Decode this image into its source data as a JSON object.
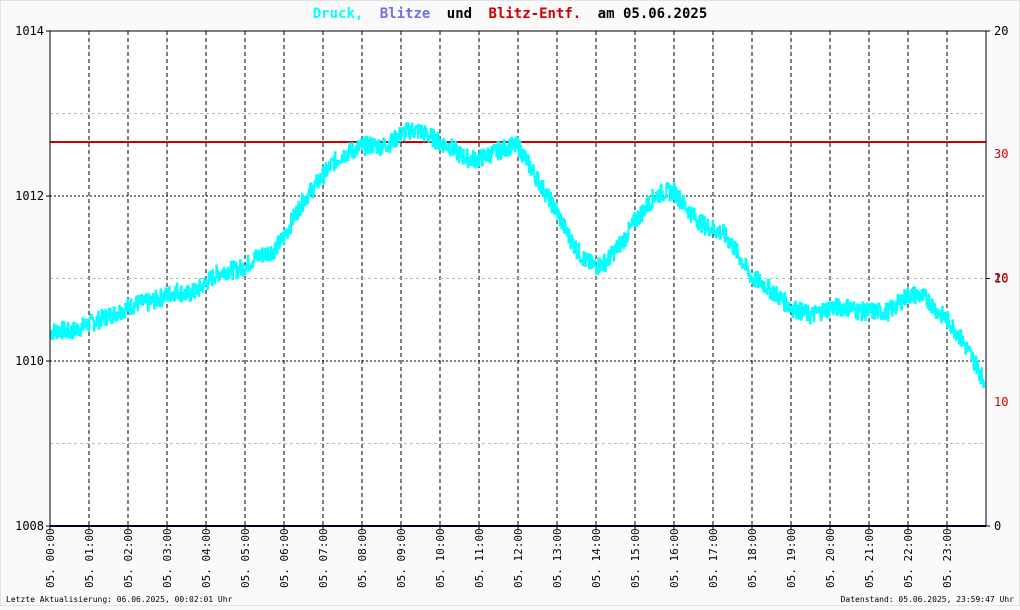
{
  "title": {
    "part1": "Druck,",
    "part2": "Blitze",
    "part3": "und",
    "part4": "Blitz-Entf.",
    "part5": "am 05.06.2025"
  },
  "footer": {
    "left": "Letzte Aktualisierung: 06.06.2025, 00:02:01 Uhr",
    "right": "Datenstand: 05.06.2025, 23:59:47 Uhr"
  },
  "colors": {
    "pressure": "#00ffff",
    "blitze": "#7070e0",
    "blitz_entf": "#cc0000",
    "title_black": "#000000",
    "right_axis_black": "#000000",
    "right_axis_red": "#cc0000",
    "lightning_count_line": "#000060"
  },
  "chart_data": {
    "type": "line",
    "x_tick_labels": [
      "05. 00:00",
      "05. 01:00",
      "05. 02:00",
      "05. 03:00",
      "05. 04:00",
      "05. 05:00",
      "05. 06:00",
      "05. 07:00",
      "05. 08:00",
      "05. 09:00",
      "05. 10:00",
      "05. 11:00",
      "05. 12:00",
      "05. 13:00",
      "05. 14:00",
      "05. 15:00",
      "05. 16:00",
      "05. 17:00",
      "05. 18:00",
      "05. 19:00",
      "05. 20:00",
      "05. 21:00",
      "05. 22:00",
      "05. 23:00"
    ],
    "xlim_hours": [
      0,
      24
    ],
    "y_left": {
      "ylim": [
        1008,
        1014
      ],
      "ticks": [
        "1008",
        "1010",
        "1012",
        "1014"
      ]
    },
    "y_right_black": {
      "ylim": [
        0,
        20
      ],
      "ticks": [
        "0",
        "10",
        "20"
      ]
    },
    "y_right_red": {
      "ticks": [
        "10",
        "20",
        "30"
      ],
      "values": [
        10,
        20,
        30
      ]
    },
    "grid": true,
    "series": [
      {
        "name": "Druck",
        "axis": "left",
        "x": [
          0,
          0.25,
          0.5,
          0.75,
          1,
          1.25,
          1.5,
          1.75,
          2,
          2.25,
          2.5,
          2.75,
          3,
          3.25,
          3.5,
          3.75,
          4,
          4.25,
          4.5,
          4.75,
          5,
          5.25,
          5.5,
          5.75,
          6,
          6.25,
          6.5,
          6.75,
          7,
          7.25,
          7.5,
          7.75,
          8,
          8.25,
          8.5,
          8.75,
          9,
          9.25,
          9.5,
          9.75,
          10,
          10.25,
          10.5,
          10.75,
          11,
          11.25,
          11.5,
          11.75,
          12,
          12.25,
          12.5,
          12.75,
          13,
          13.25,
          13.5,
          13.75,
          14,
          14.25,
          14.5,
          14.75,
          15,
          15.25,
          15.5,
          15.75,
          16,
          16.25,
          16.5,
          16.75,
          17,
          17.25,
          17.5,
          17.75,
          18,
          18.25,
          18.5,
          18.75,
          19,
          19.25,
          19.5,
          19.75,
          20,
          20.25,
          20.5,
          20.75,
          21,
          21.25,
          21.5,
          21.75,
          22,
          22.25,
          22.5,
          22.75,
          23,
          23.25,
          23.5,
          23.75,
          23.95
        ],
        "values": [
          1010.35,
          1010.38,
          1010.35,
          1010.4,
          1010.45,
          1010.5,
          1010.55,
          1010.6,
          1010.65,
          1010.7,
          1010.7,
          1010.75,
          1010.8,
          1010.85,
          1010.8,
          1010.85,
          1010.95,
          1011.05,
          1011.1,
          1011.1,
          1011.15,
          1011.25,
          1011.3,
          1011.35,
          1011.5,
          1011.75,
          1011.95,
          1012.1,
          1012.25,
          1012.4,
          1012.5,
          1012.55,
          1012.6,
          1012.62,
          1012.6,
          1012.65,
          1012.75,
          1012.8,
          1012.78,
          1012.72,
          1012.65,
          1012.6,
          1012.5,
          1012.45,
          1012.45,
          1012.5,
          1012.55,
          1012.6,
          1012.6,
          1012.4,
          1012.2,
          1012.0,
          1011.8,
          1011.55,
          1011.35,
          1011.2,
          1011.15,
          1011.2,
          1011.35,
          1011.5,
          1011.7,
          1011.85,
          1012.0,
          1012.05,
          1012.05,
          1011.9,
          1011.75,
          1011.65,
          1011.6,
          1011.55,
          1011.4,
          1011.2,
          1011.0,
          1010.95,
          1010.85,
          1010.75,
          1010.65,
          1010.6,
          1010.55,
          1010.6,
          1010.65,
          1010.65,
          1010.65,
          1010.6,
          1010.6,
          1010.6,
          1010.6,
          1010.7,
          1010.8,
          1010.8,
          1010.75,
          1010.6,
          1010.5,
          1010.35,
          1010.15,
          1009.95,
          1009.75
        ]
      },
      {
        "name": "Blitze",
        "axis": "right",
        "x": [
          0,
          24
        ],
        "values": [
          0,
          0
        ]
      },
      {
        "name": "Blitz-Entf.",
        "axis": "right",
        "x": [
          0,
          24
        ],
        "values": [
          31,
          31
        ]
      }
    ]
  }
}
